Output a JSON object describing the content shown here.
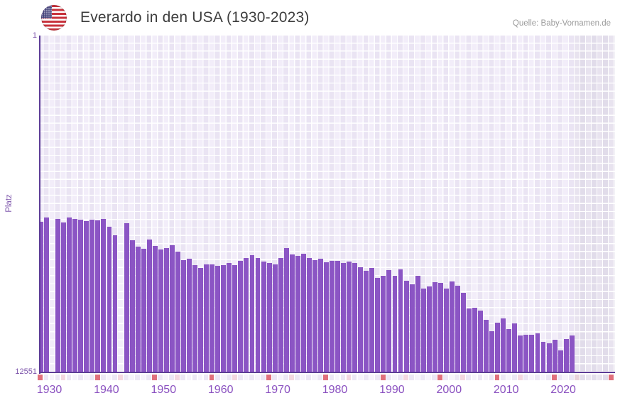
{
  "header": {
    "title": "Everardo in den USA (1930-2023)",
    "source": "Quelle: Baby-Vornamen.de",
    "flag_icon": "us-flag-circle-icon"
  },
  "y_axis": {
    "top_label": "1",
    "bottom_label": "12551",
    "axis_title": "Platz"
  },
  "x_axis": {
    "tick_labels": [
      "1930",
      "1940",
      "1950",
      "1960",
      "1970",
      "1980",
      "1990",
      "2000",
      "2010",
      "2020"
    ]
  },
  "chart_data": {
    "type": "bar",
    "title": "Everardo in den USA (1930-2023)",
    "xlabel": "",
    "ylabel": "Platz",
    "ylim": [
      1,
      12551
    ],
    "y_axis_inverted": true,
    "x_range_shown": [
      1930,
      2030
    ],
    "data_range": [
      1930,
      2023
    ],
    "missing_years": [
      1932,
      1944
    ],
    "years": [
      1930,
      1931,
      1932,
      1933,
      1934,
      1935,
      1936,
      1937,
      1938,
      1939,
      1940,
      1941,
      1942,
      1943,
      1944,
      1945,
      1946,
      1947,
      1948,
      1949,
      1950,
      1951,
      1952,
      1953,
      1954,
      1955,
      1956,
      1957,
      1958,
      1959,
      1960,
      1961,
      1962,
      1963,
      1964,
      1965,
      1966,
      1967,
      1968,
      1969,
      1970,
      1971,
      1972,
      1973,
      1974,
      1975,
      1976,
      1977,
      1978,
      1979,
      1980,
      1981,
      1982,
      1983,
      1984,
      1985,
      1986,
      1987,
      1988,
      1989,
      1990,
      1991,
      1992,
      1993,
      1994,
      1995,
      1996,
      1997,
      1998,
      1999,
      2000,
      2001,
      2002,
      2003,
      2004,
      2005,
      2006,
      2007,
      2008,
      2009,
      2010,
      2011,
      2012,
      2013,
      2014,
      2015,
      2016,
      2017,
      2018,
      2019,
      2020,
      2021,
      2022,
      2023
    ],
    "ranks": [
      6930,
      6780,
      null,
      6840,
      6960,
      6780,
      6840,
      6870,
      6900,
      6870,
      6890,
      6840,
      7130,
      7440,
      null,
      6990,
      7620,
      7860,
      7940,
      7610,
      7840,
      7970,
      7920,
      7810,
      8050,
      8370,
      8310,
      8550,
      8660,
      8530,
      8530,
      8570,
      8540,
      8460,
      8540,
      8400,
      8290,
      8190,
      8300,
      8430,
      8460,
      8520,
      8300,
      7920,
      8160,
      8210,
      8120,
      8300,
      8360,
      8320,
      8450,
      8400,
      8400,
      8470,
      8430,
      8460,
      8630,
      8770,
      8650,
      9030,
      8960,
      8740,
      8940,
      8720,
      9140,
      9270,
      8960,
      9420,
      9360,
      9200,
      9220,
      9420,
      9160,
      9330,
      9580,
      10180,
      10130,
      10260,
      10580,
      11010,
      10710,
      10530,
      10940,
      10730,
      11180,
      11150,
      11150,
      11100,
      11420,
      11460,
      11340,
      11720,
      11310,
      11180
    ],
    "colors": {
      "bar": "#8b55c4",
      "axis_line": "#5d3d96",
      "grid_cell_light_a": "#f2edf9",
      "grid_cell_light_b": "#eae4f3",
      "future_cell_a": "#e8e3ef",
      "future_cell_b": "#e1dcea",
      "strip_red": "#e0707c",
      "strip_pink": "#f3d7e0",
      "strip_pink_future": "#e8d2da",
      "strip_light_a": "#f6f3fb",
      "strip_light_b": "#ece7f5",
      "strip_future_a": "#e9e5f0",
      "strip_future_b": "#e2ddeb",
      "label_purple": "#8a50c0"
    },
    "strip": {
      "start": 1930,
      "end": 2030,
      "red_years": [
        1930,
        1940,
        1950,
        1960,
        1970,
        1980,
        1990,
        2000,
        2010,
        2020,
        2030
      ],
      "pink_years": [
        1934,
        1944,
        1954,
        1964,
        1974,
        1984,
        1994,
        2004,
        2014,
        2024
      ],
      "future_from": 2024
    },
    "legend": null,
    "grid": "checkered"
  }
}
